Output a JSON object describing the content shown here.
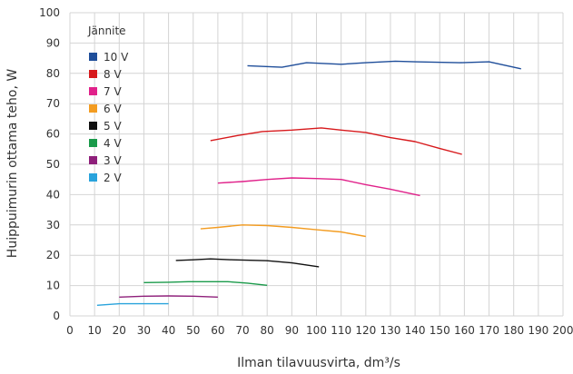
{
  "chart_data": {
    "type": "line",
    "title": "",
    "xlabel": "Ilman tilavuusvirta, dm³/s",
    "ylabel": "Huippuimurin ottama teho, W",
    "xlim": [
      0,
      200
    ],
    "ylim": [
      0,
      100
    ],
    "x_ticks": [
      "0",
      "10",
      "20",
      "30",
      "40",
      "50",
      "60",
      "70",
      "80",
      "90",
      "100",
      "110",
      "120",
      "130",
      "140",
      "150",
      "160",
      "170",
      "180",
      "190",
      "200"
    ],
    "y_ticks": [
      "0",
      "10",
      "20",
      "30",
      "40",
      "50",
      "60",
      "70",
      "80",
      "90",
      "100"
    ],
    "grid": true,
    "legend": {
      "title": "Jännite",
      "position": "top-left"
    },
    "series": [
      {
        "name": "10 V",
        "color": "#1f4e9a",
        "points": [
          [
            72,
            82.5
          ],
          [
            86,
            82
          ],
          [
            96,
            83.5
          ],
          [
            110,
            83
          ],
          [
            120,
            83.5
          ],
          [
            132,
            84
          ],
          [
            140,
            83.8
          ],
          [
            158,
            83.5
          ],
          [
            170,
            83.8
          ],
          [
            183,
            81.5
          ]
        ]
      },
      {
        "name": "8 V",
        "color": "#d7191c",
        "points": [
          [
            57,
            57.8
          ],
          [
            68,
            59.5
          ],
          [
            78,
            60.8
          ],
          [
            90,
            61.3
          ],
          [
            102,
            62
          ],
          [
            110,
            61.3
          ],
          [
            120,
            60.5
          ],
          [
            130,
            58.8
          ],
          [
            140,
            57.5
          ],
          [
            150,
            55.2
          ],
          [
            159,
            53.3
          ]
        ]
      },
      {
        "name": "7 V",
        "color": "#e0218a",
        "points": [
          [
            60,
            43.8
          ],
          [
            70,
            44.3
          ],
          [
            80,
            45
          ],
          [
            90,
            45.5
          ],
          [
            100,
            45.3
          ],
          [
            110,
            45
          ],
          [
            120,
            43.3
          ],
          [
            130,
            41.8
          ],
          [
            142,
            39.7
          ]
        ]
      },
      {
        "name": "6 V",
        "color": "#f39c21",
        "points": [
          [
            53,
            28.7
          ],
          [
            60,
            29.2
          ],
          [
            70,
            30
          ],
          [
            80,
            29.8
          ],
          [
            90,
            29.2
          ],
          [
            100,
            28.4
          ],
          [
            110,
            27.7
          ],
          [
            120,
            26.2
          ]
        ]
      },
      {
        "name": "5 V",
        "color": "#111111",
        "points": [
          [
            43,
            18.3
          ],
          [
            50,
            18.5
          ],
          [
            57,
            18.8
          ],
          [
            66,
            18.5
          ],
          [
            80,
            18.2
          ],
          [
            90,
            17.5
          ],
          [
            101,
            16.2
          ]
        ]
      },
      {
        "name": "4 V",
        "color": "#1a9a4a",
        "points": [
          [
            30,
            11
          ],
          [
            40,
            11.1
          ],
          [
            48,
            11.3
          ],
          [
            64,
            11.3
          ],
          [
            72,
            10.8
          ],
          [
            80,
            10.1
          ]
        ]
      },
      {
        "name": "3 V",
        "color": "#8e1f7a",
        "points": [
          [
            20,
            6.2
          ],
          [
            30,
            6.5
          ],
          [
            40,
            6.6
          ],
          [
            50,
            6.5
          ],
          [
            60,
            6.2
          ]
        ]
      },
      {
        "name": "2 V",
        "color": "#29a3dc",
        "points": [
          [
            11,
            3.5
          ],
          [
            20,
            4
          ],
          [
            30,
            4
          ],
          [
            40,
            4
          ]
        ]
      }
    ]
  }
}
